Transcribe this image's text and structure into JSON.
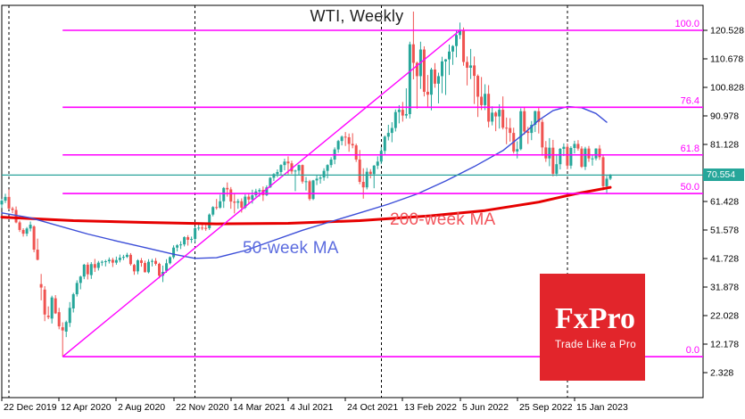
{
  "price_tag": {
    "value": "70.554"
  },
  "watermark": {
    "brand": "FxPro",
    "slogan": "Trade Like a Pro"
  },
  "colors": {
    "background": "#ffffff",
    "bull_candle": "#26a69a",
    "bear_candle": "#ef5350",
    "ma200_line": "#e60000",
    "ma50_line": "#3c4ed8",
    "ma200_label": "#f2545b",
    "ma50_label": "#5c6cdf",
    "fibonacci": "#ff00ff",
    "trendline": "#ff00ff",
    "price_line": "#2aa39b",
    "price_tag_bg": "#26a69a",
    "axis_text": "#000000",
    "frame": "#000000",
    "year_separator": "#000000",
    "logo_bg": "#e2252b"
  },
  "chart_data": {
    "type": "candlestick",
    "title": "WTI, Weekly",
    "instrument": "WTI",
    "timeframe": "Weekly",
    "current_price": 70.554,
    "price_line": 70.554,
    "x_axis": {
      "tick_labels": [
        "22 Dec 2019",
        "12 Apr 2020",
        "2 Aug 2020",
        "22 Nov 2020",
        "14 Mar 2021",
        "4 Jul 2021",
        "24 Oct 2021",
        "13 Feb 2022",
        "5 Jun 2022",
        "25 Sep 2022",
        "15 Jan 2023"
      ],
      "tick_weeks": [
        0,
        16,
        32,
        48,
        64,
        80,
        96,
        112,
        128,
        144,
        160
      ],
      "grid": "off"
    },
    "y_axis": {
      "side": "right",
      "tick_labels": [
        "120.528",
        "110.678",
        "100.828",
        "90.978",
        "81.128",
        "61.428",
        "51.578",
        "41.728",
        "31.878",
        "22.028",
        "12.178",
        "2.328"
      ],
      "range_top": 128.9,
      "range_bottom": -6.3
    },
    "year_separator_weeks": [
      2,
      54,
      106,
      158
    ],
    "fib_start_week": 17,
    "fibonacci_levels": [
      {
        "label": "100.0",
        "price": 120.53
      },
      {
        "label": "76.4",
        "price": 93.95
      },
      {
        "label": "61.8",
        "price": 77.51
      },
      {
        "label": "50.0",
        "price": 64.19
      },
      {
        "label": "0.0",
        "price": 7.86
      }
    ],
    "trendline": {
      "from": [
        17,
        7.86
      ],
      "to": [
        128,
        120.53
      ]
    },
    "moving_averages": [
      {
        "label": "200-week MA",
        "points": [
          [
            0,
            56.0
          ],
          [
            20,
            54.8
          ],
          [
            40,
            54.2
          ],
          [
            60,
            53.7
          ],
          [
            80,
            53.9
          ],
          [
            100,
            54.8
          ],
          [
            120,
            56.5
          ],
          [
            135,
            58.3
          ],
          [
            150,
            61.2
          ],
          [
            160,
            64.0
          ],
          [
            170,
            66.3
          ]
        ]
      },
      {
        "label": "50-week MA",
        "points": [
          [
            0,
            57.5
          ],
          [
            8,
            55.8
          ],
          [
            16,
            53.0
          ],
          [
            24,
            50.2
          ],
          [
            32,
            47.8
          ],
          [
            40,
            45.5
          ],
          [
            48,
            43.2
          ],
          [
            54,
            41.8
          ],
          [
            60,
            42.0
          ],
          [
            68,
            44.5
          ],
          [
            76,
            48.0
          ],
          [
            84,
            51.5
          ],
          [
            92,
            54.5
          ],
          [
            100,
            57.5
          ],
          [
            108,
            60.5
          ],
          [
            116,
            64.0
          ],
          [
            124,
            68.5
          ],
          [
            132,
            73.5
          ],
          [
            140,
            79.0
          ],
          [
            146,
            85.0
          ],
          [
            150,
            89.5
          ],
          [
            154,
            92.8
          ],
          [
            158,
            94.2
          ],
          [
            162,
            93.8
          ],
          [
            166,
            91.8
          ],
          [
            169,
            88.8
          ]
        ]
      }
    ],
    "candles_ohlc": [
      [
        60.4,
        62.3,
        59.2,
        61.7
      ],
      [
        61.7,
        64.1,
        60.9,
        63.0
      ],
      [
        63.0,
        65.6,
        58.7,
        59.0
      ],
      [
        59.0,
        59.6,
        57.4,
        58.5
      ],
      [
        58.5,
        59.7,
        53.9,
        54.2
      ],
      [
        54.2,
        54.8,
        50.9,
        51.6
      ],
      [
        51.6,
        52.2,
        49.3,
        50.3
      ],
      [
        50.3,
        52.6,
        49.4,
        52.1
      ],
      [
        52.1,
        54.5,
        51.1,
        53.4
      ],
      [
        52.8,
        53.2,
        43.9,
        44.8
      ],
      [
        44.8,
        48.6,
        41.1,
        41.3
      ],
      [
        32.9,
        36.4,
        27.3,
        31.7
      ],
      [
        31.0,
        32.2,
        20.1,
        22.4
      ],
      [
        22.0,
        25.2,
        20.8,
        21.5
      ],
      [
        21.0,
        28.9,
        19.3,
        28.3
      ],
      [
        28.0,
        29.1,
        22.6,
        22.8
      ],
      [
        23.2,
        24.7,
        17.3,
        18.3
      ],
      [
        18.0,
        19.7,
        7.9,
        16.9
      ],
      [
        16.5,
        20.3,
        14.6,
        19.8
      ],
      [
        19.5,
        26.7,
        18.1,
        24.7
      ],
      [
        24.5,
        29.9,
        23.1,
        29.4
      ],
      [
        29.4,
        34.2,
        28.6,
        33.3
      ],
      [
        33.3,
        35.8,
        31.1,
        35.5
      ],
      [
        35.5,
        39.9,
        34.6,
        39.6
      ],
      [
        39.6,
        40.4,
        34.5,
        36.3
      ],
      [
        36.0,
        40.5,
        34.7,
        39.8
      ],
      [
        39.8,
        41.6,
        37.1,
        38.5
      ],
      [
        38.5,
        40.9,
        37.6,
        40.3
      ],
      [
        40.3,
        41.1,
        39.2,
        40.6
      ],
      [
        40.6,
        41.3,
        39.0,
        40.8
      ],
      [
        40.8,
        42.1,
        40.0,
        41.3
      ],
      [
        41.3,
        42.0,
        38.8,
        40.3
      ],
      [
        40.3,
        42.4,
        39.6,
        41.2
      ],
      [
        41.2,
        43.1,
        40.4,
        42.0
      ],
      [
        42.0,
        43.0,
        41.2,
        42.3
      ],
      [
        42.3,
        43.7,
        41.9,
        43.0
      ],
      [
        43.0,
        43.6,
        39.3,
        39.8
      ],
      [
        39.5,
        39.9,
        36.1,
        37.3
      ],
      [
        37.3,
        41.5,
        36.3,
        41.1
      ],
      [
        41.1,
        41.9,
        38.9,
        40.2
      ],
      [
        40.2,
        41.0,
        36.9,
        37.0
      ],
      [
        37.0,
        41.5,
        36.6,
        40.6
      ],
      [
        40.6,
        41.6,
        39.0,
        40.9
      ],
      [
        40.9,
        41.9,
        39.3,
        39.9
      ],
      [
        39.9,
        40.3,
        34.9,
        35.8
      ],
      [
        35.8,
        39.3,
        33.6,
        37.1
      ],
      [
        37.5,
        41.5,
        36.8,
        40.1
      ],
      [
        40.1,
        42.5,
        39.7,
        42.2
      ],
      [
        42.2,
        46.3,
        41.6,
        45.5
      ],
      [
        45.5,
        46.7,
        44.2,
        46.3
      ],
      [
        46.3,
        47.7,
        45.0,
        46.6
      ],
      [
        46.6,
        49.4,
        45.9,
        49.1
      ],
      [
        49.1,
        49.8,
        46.2,
        48.2
      ],
      [
        48.2,
        49.3,
        47.1,
        48.5
      ],
      [
        48.5,
        52.8,
        47.2,
        52.2
      ],
      [
        52.2,
        53.9,
        51.4,
        52.4
      ],
      [
        52.4,
        53.5,
        51.5,
        52.3
      ],
      [
        52.3,
        53.3,
        51.3,
        52.2
      ],
      [
        52.2,
        57.3,
        51.6,
        56.9
      ],
      [
        56.9,
        59.8,
        56.3,
        59.5
      ],
      [
        59.5,
        62.3,
        58.6,
        59.3
      ],
      [
        59.3,
        63.8,
        58.9,
        61.5
      ],
      [
        61.5,
        66.4,
        59.2,
        66.1
      ],
      [
        66.1,
        68.0,
        63.1,
        65.6
      ],
      [
        65.6,
        66.4,
        58.9,
        61.4
      ],
      [
        61.4,
        64.4,
        57.3,
        61.0
      ],
      [
        61.0,
        62.3,
        58.9,
        61.5
      ],
      [
        61.5,
        62.5,
        57.6,
        59.3
      ],
      [
        59.3,
        63.9,
        58.8,
        63.1
      ],
      [
        63.1,
        64.4,
        60.6,
        62.1
      ],
      [
        62.1,
        65.5,
        60.7,
        63.6
      ],
      [
        63.6,
        65.8,
        62.9,
        64.9
      ],
      [
        64.9,
        66.0,
        63.1,
        65.4
      ],
      [
        65.4,
        66.6,
        61.6,
        63.6
      ],
      [
        63.6,
        67.0,
        63.3,
        66.3
      ],
      [
        66.3,
        69.9,
        66.1,
        69.6
      ],
      [
        69.6,
        71.2,
        68.5,
        70.9
      ],
      [
        70.9,
        72.5,
        69.8,
        71.6
      ],
      [
        71.6,
        74.3,
        70.7,
        74.0
      ],
      [
        74.0,
        76.2,
        72.2,
        75.2
      ],
      [
        75.2,
        77.0,
        70.8,
        74.6
      ],
      [
        74.6,
        75.5,
        70.9,
        71.8
      ],
      [
        71.8,
        72.4,
        65.0,
        72.1
      ],
      [
        72.1,
        74.2,
        70.5,
        74.0
      ],
      [
        74.0,
        74.2,
        67.6,
        68.3
      ],
      [
        68.3,
        69.9,
        65.2,
        68.4
      ],
      [
        68.4,
        68.9,
        61.7,
        62.3
      ],
      [
        62.3,
        68.9,
        61.9,
        68.7
      ],
      [
        68.7,
        70.6,
        67.1,
        69.3
      ],
      [
        69.3,
        70.3,
        67.6,
        69.7
      ],
      [
        69.7,
        72.9,
        68.6,
        72.0
      ],
      [
        72.0,
        74.3,
        69.4,
        74.0
      ],
      [
        74.0,
        76.7,
        73.1,
        75.9
      ],
      [
        75.9,
        80.1,
        74.3,
        79.4
      ],
      [
        79.4,
        82.7,
        78.2,
        82.3
      ],
      [
        82.3,
        84.2,
        80.8,
        83.8
      ],
      [
        83.8,
        85.4,
        80.6,
        83.6
      ],
      [
        83.6,
        84.9,
        78.6,
        81.3
      ],
      [
        81.3,
        85.0,
        79.8,
        80.8
      ],
      [
        80.8,
        81.4,
        75.1,
        75.9
      ],
      [
        75.9,
        79.2,
        67.4,
        68.2
      ],
      [
        68.2,
        72.9,
        62.4,
        66.3
      ],
      [
        66.3,
        73.0,
        65.6,
        71.7
      ],
      [
        71.7,
        72.6,
        69.4,
        70.9
      ],
      [
        70.9,
        74.0,
        66.0,
        73.8
      ],
      [
        73.8,
        77.0,
        72.6,
        75.2
      ],
      [
        75.2,
        80.2,
        74.3,
        78.9
      ],
      [
        78.9,
        84.2,
        77.8,
        83.8
      ],
      [
        83.8,
        87.9,
        82.5,
        85.1
      ],
      [
        85.1,
        88.8,
        81.9,
        86.8
      ],
      [
        86.8,
        93.2,
        85.6,
        92.3
      ],
      [
        92.3,
        94.7,
        88.4,
        93.1
      ],
      [
        93.1,
        95.8,
        89.0,
        91.1
      ],
      [
        91.1,
        100.5,
        90.1,
        91.6
      ],
      [
        91.6,
        116.6,
        90.1,
        115.7
      ],
      [
        115.7,
        127.0,
        103.6,
        109.3
      ],
      [
        109.3,
        109.7,
        93.5,
        104.7
      ],
      [
        104.7,
        116.6,
        100.3,
        113.9
      ],
      [
        113.9,
        115.0,
        97.7,
        99.3
      ],
      [
        99.3,
        105.1,
        93.8,
        98.3
      ],
      [
        98.3,
        107.6,
        92.9,
        107.0
      ],
      [
        107.0,
        109.2,
        100.7,
        102.1
      ],
      [
        102.1,
        105.9,
        95.3,
        104.7
      ],
      [
        104.7,
        111.4,
        98.8,
        109.8
      ],
      [
        109.8,
        110.6,
        98.2,
        110.5
      ],
      [
        110.5,
        115.6,
        105.1,
        113.2
      ],
      [
        113.2,
        115.4,
        108.6,
        115.1
      ],
      [
        115.1,
        120.4,
        111.2,
        118.9
      ],
      [
        118.9,
        123.2,
        117.5,
        120.7
      ],
      [
        120.7,
        121.5,
        108.3,
        109.6
      ],
      [
        109.6,
        111.5,
        101.5,
        107.6
      ],
      [
        107.6,
        114.1,
        103.7,
        108.4
      ],
      [
        108.4,
        111.5,
        95.1,
        104.8
      ],
      [
        104.8,
        105.3,
        90.6,
        97.6
      ],
      [
        97.6,
        104.4,
        93.0,
        94.7
      ],
      [
        94.7,
        101.9,
        93.0,
        98.6
      ],
      [
        98.6,
        101.6,
        87.0,
        89.0
      ],
      [
        89.0,
        94.3,
        87.7,
        92.1
      ],
      [
        92.1,
        92.6,
        85.7,
        90.8
      ],
      [
        90.8,
        95.0,
        86.6,
        93.1
      ],
      [
        93.1,
        97.7,
        86.3,
        86.9
      ],
      [
        86.9,
        90.4,
        81.2,
        86.8
      ],
      [
        86.8,
        90.2,
        82.1,
        85.1
      ],
      [
        85.1,
        86.9,
        78.0,
        78.7
      ],
      [
        78.7,
        82.2,
        76.3,
        79.5
      ],
      [
        79.5,
        93.6,
        79.1,
        92.6
      ],
      [
        92.6,
        93.9,
        84.5,
        85.6
      ],
      [
        85.6,
        87.2,
        81.3,
        85.1
      ],
      [
        85.1,
        89.2,
        82.6,
        87.9
      ],
      [
        87.9,
        92.8,
        85.4,
        92.6
      ],
      [
        92.6,
        93.7,
        84.9,
        88.9
      ],
      [
        88.9,
        89.9,
        77.2,
        80.1
      ],
      [
        80.1,
        82.3,
        75.1,
        76.3
      ],
      [
        76.3,
        83.3,
        73.6,
        80.0
      ],
      [
        80.0,
        82.7,
        70.1,
        71.0
      ],
      [
        71.0,
        77.8,
        70.2,
        74.3
      ],
      [
        74.3,
        79.9,
        72.5,
        79.6
      ],
      [
        79.6,
        81.5,
        77.1,
        80.3
      ],
      [
        80.3,
        81.5,
        72.5,
        73.8
      ],
      [
        73.8,
        80.5,
        72.7,
        79.9
      ],
      [
        79.9,
        82.4,
        78.0,
        81.3
      ],
      [
        81.3,
        82.6,
        79.0,
        79.7
      ],
      [
        79.7,
        80.5,
        73.0,
        73.4
      ],
      [
        73.4,
        80.3,
        72.3,
        79.7
      ],
      [
        79.7,
        80.6,
        75.1,
        76.3
      ],
      [
        76.3,
        77.5,
        73.8,
        76.3
      ],
      [
        76.3,
        79.8,
        75.6,
        79.7
      ],
      [
        79.7,
        80.9,
        75.8,
        76.7
      ],
      [
        76.7,
        77.4,
        65.3,
        66.7
      ],
      [
        66.7,
        70.3,
        64.1,
        69.3
      ],
      [
        69.3,
        70.9,
        68.8,
        70.554
      ]
    ]
  }
}
